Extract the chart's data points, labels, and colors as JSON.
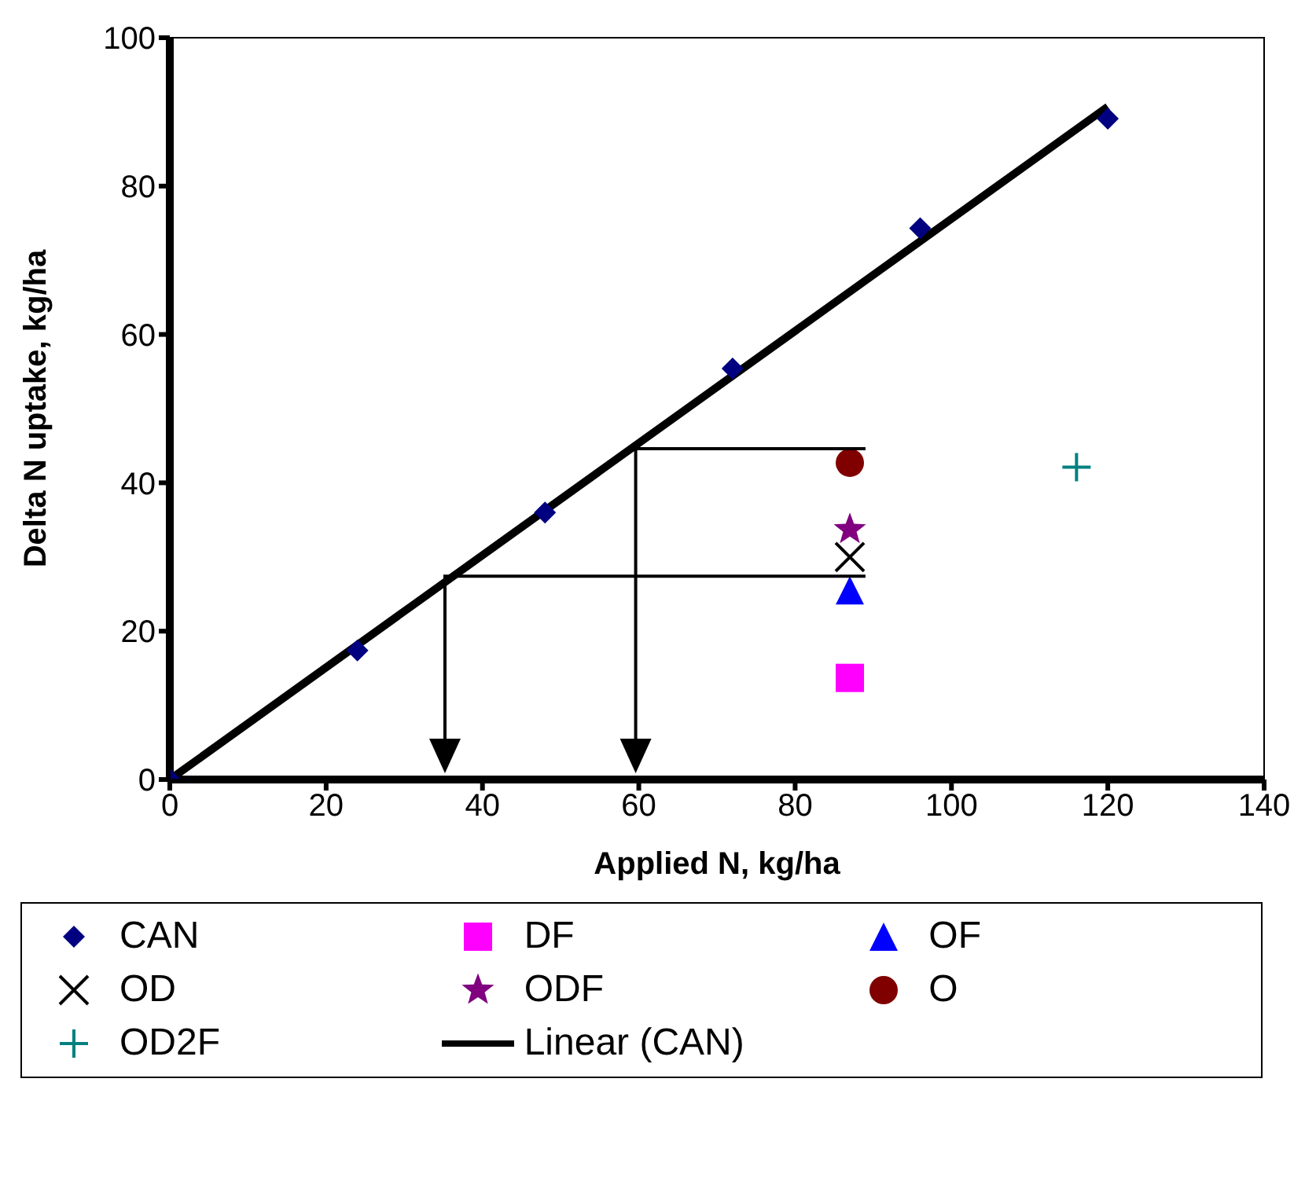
{
  "chart_data": {
    "type": "scatter",
    "xlabel": "Applied N, kg/ha",
    "ylabel": "Delta N uptake, kg/ha",
    "xlim": [
      0,
      140
    ],
    "xticks": [
      0,
      20,
      40,
      60,
      80,
      100,
      120,
      140
    ],
    "ylim": [
      0,
      100
    ],
    "yticks": [
      0,
      20,
      40,
      60,
      80,
      100
    ],
    "grid": false,
    "legend": "bottom",
    "series": [
      {
        "name": "CAN",
        "color": "#000080",
        "marker": "diamond",
        "x": [
          0,
          24,
          48,
          72,
          96,
          120
        ],
        "values": [
          0,
          17.4,
          36,
          55.4,
          74.3,
          89.1
        ]
      },
      {
        "name": "DF",
        "color": "#ff00ff",
        "marker": "square",
        "x": [
          87
        ],
        "values": [
          13.7
        ]
      },
      {
        "name": "OF",
        "color": "#0000ff",
        "marker": "triangle",
        "x": [
          87
        ],
        "values": [
          25.5
        ]
      },
      {
        "name": "OD",
        "color": "#000000",
        "marker": "cross",
        "x": [
          87
        ],
        "values": [
          30
        ]
      },
      {
        "name": "ODF",
        "color": "#800080",
        "marker": "star",
        "x": [
          87
        ],
        "values": [
          33.7
        ]
      },
      {
        "name": "O",
        "color": "#800000",
        "marker": "circle",
        "x": [
          87
        ],
        "values": [
          42.7
        ]
      },
      {
        "name": "OD2F",
        "color": "#008080",
        "marker": "plus",
        "x": [
          116
        ],
        "values": [
          42.1
        ]
      },
      {
        "name": "Linear (CAN)",
        "type": "line",
        "color": "#000000",
        "marker": "none",
        "line_style": "solid",
        "x": [
          0,
          120
        ],
        "values": [
          0,
          90.7
        ]
      }
    ]
  }
}
